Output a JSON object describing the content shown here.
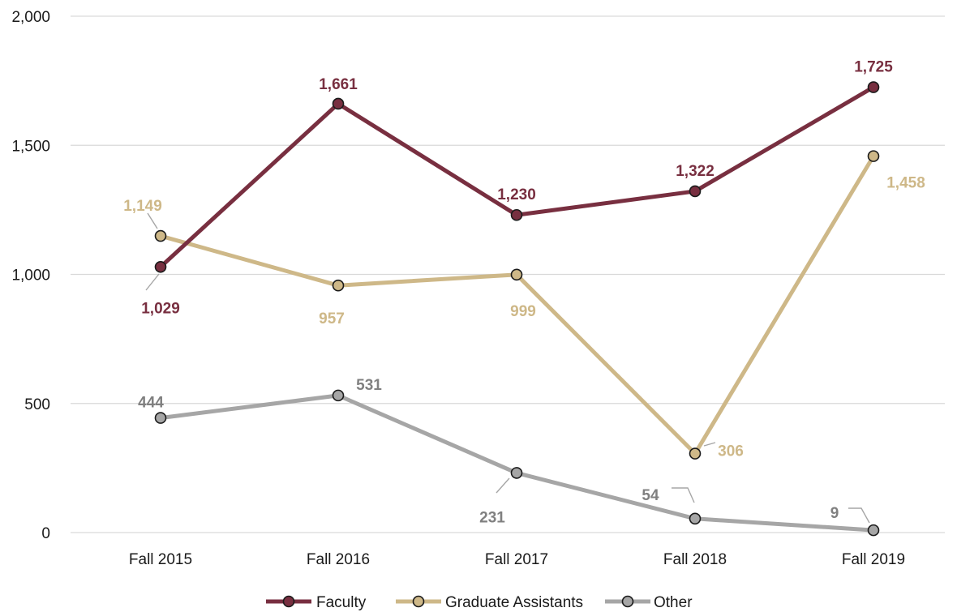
{
  "chart_data": {
    "type": "line",
    "categories": [
      "Fall 2015",
      "Fall 2016",
      "Fall 2017",
      "Fall 2018",
      "Fall 2019"
    ],
    "ylim": [
      0,
      2000
    ],
    "yticks": [
      0,
      500,
      1000,
      1500,
      2000
    ],
    "ytick_labels": [
      "0",
      "500",
      "1,000",
      "1,500",
      "2,000"
    ],
    "grid": true,
    "legend_position": "bottom",
    "series": [
      {
        "name": "Faculty",
        "color": "#782F40",
        "values": [
          1029,
          1661,
          1230,
          1322,
          1725
        ],
        "labels": [
          "1,029",
          "1,661",
          "1,230",
          "1,322",
          "1,725"
        ]
      },
      {
        "name": "Graduate Assistants",
        "color": "#CEB888",
        "values": [
          1149,
          957,
          999,
          306,
          1458
        ],
        "labels": [
          "1,149",
          "957",
          "999",
          "306",
          "1,458"
        ]
      },
      {
        "name": "Other",
        "color": "#A6A6A6",
        "label_color": "#808080",
        "values": [
          444,
          531,
          231,
          54,
          9
        ],
        "labels": [
          "444",
          "531",
          "231",
          "54",
          "9"
        ]
      }
    ]
  }
}
